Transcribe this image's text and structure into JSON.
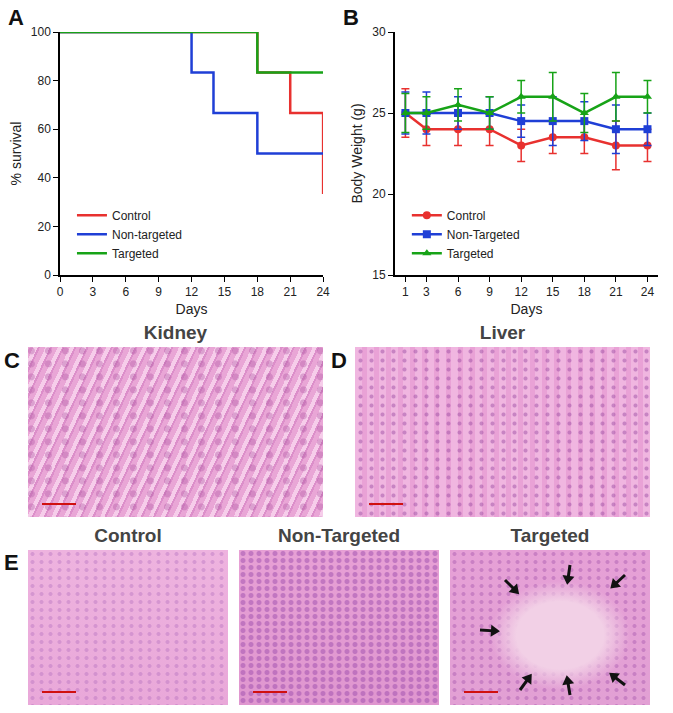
{
  "chart_data": [
    {
      "panel": "A",
      "type": "line",
      "line_style": "step",
      "x_label": "Days",
      "y_label": "% survival",
      "xlim": [
        0,
        24
      ],
      "xticks": [
        0,
        3,
        6,
        9,
        12,
        15,
        18,
        21,
        24
      ],
      "ylim": [
        0,
        100
      ],
      "yticks": [
        0,
        20,
        40,
        60,
        80,
        100
      ],
      "grid": false,
      "legend": "lower left",
      "series": [
        {
          "name": "Control",
          "color": "#e8312f",
          "x": [
            0,
            18,
            21,
            24
          ],
          "values": [
            100,
            83.3,
            66.7,
            33.3
          ]
        },
        {
          "name": "Non-targeted",
          "color": "#1f3fd6",
          "x": [
            0,
            12,
            14,
            18,
            24
          ],
          "values": [
            100,
            83.3,
            66.7,
            50,
            50
          ]
        },
        {
          "name": "Targeted",
          "color": "#17a317",
          "x": [
            0,
            18,
            24
          ],
          "values": [
            100,
            83.3,
            83.3
          ]
        }
      ]
    },
    {
      "panel": "B",
      "type": "line",
      "x_label": "Days",
      "y_label": "Body Weight (g)",
      "x": [
        1,
        3,
        6,
        9,
        12,
        15,
        18,
        21,
        24
      ],
      "xlim": [
        0,
        25
      ],
      "xticks": [
        1,
        3,
        6,
        9,
        12,
        15,
        18,
        21,
        24
      ],
      "ylim": [
        15,
        30
      ],
      "yticks": [
        15,
        20,
        25,
        30
      ],
      "grid": false,
      "legend": "lower left",
      "series": [
        {
          "name": "Control",
          "color": "#e8312f",
          "marker": "circle",
          "values": [
            25,
            24,
            24,
            24,
            23,
            23.5,
            23.5,
            23,
            23
          ],
          "error": [
            1.5,
            1,
            1,
            1,
            1,
            1,
            1,
            1.5,
            1
          ]
        },
        {
          "name": "Non-Targeted",
          "color": "#1f3fd6",
          "marker": "square",
          "values": [
            25,
            25,
            25,
            25,
            24.5,
            24.5,
            24.5,
            24,
            24
          ],
          "error": [
            1.3,
            1.3,
            1,
            1,
            1,
            1.5,
            1.2,
            1.5,
            1
          ]
        },
        {
          "name": "Targeted",
          "color": "#17a317",
          "marker": "triangle",
          "values": [
            25,
            25,
            25.5,
            25,
            26,
            26,
            25,
            26,
            26
          ],
          "error": [
            1.2,
            1,
            1,
            1,
            1,
            1.5,
            1.2,
            1.5,
            1
          ]
        }
      ]
    }
  ],
  "images": {
    "top_row": [
      {
        "letter": "C",
        "title": "Kidney"
      },
      {
        "letter": "D",
        "title": "Liver"
      }
    ],
    "bottom_row": {
      "letter": "E",
      "titles": [
        "Control",
        "Non-Targeted",
        "Targeted"
      ]
    }
  }
}
